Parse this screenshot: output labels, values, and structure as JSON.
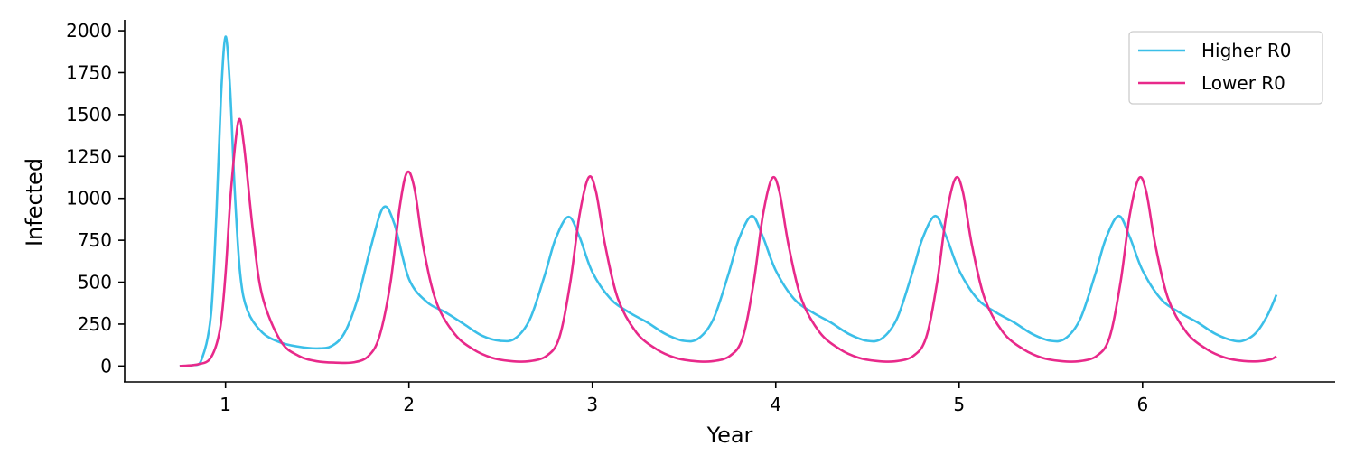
{
  "chart_data": {
    "type": "line",
    "title": "",
    "xlabel": "Year",
    "ylabel": "Infected",
    "xlim": [
      0.45,
      7.05
    ],
    "ylim": [
      -95,
      2065
    ],
    "xticks": [
      1,
      2,
      3,
      4,
      5,
      6
    ],
    "yticks": [
      0,
      250,
      500,
      750,
      1000,
      1250,
      1500,
      1750,
      2000
    ],
    "grid": false,
    "legend_position": "top-right",
    "series": [
      {
        "name": "Higher R0",
        "color": "#3bbfe8",
        "points": [
          [
            0.75,
            0
          ],
          [
            0.82,
            5
          ],
          [
            0.87,
            40
          ],
          [
            0.92,
            300
          ],
          [
            0.95,
            900
          ],
          [
            0.975,
            1600
          ],
          [
            1.0,
            1965
          ],
          [
            1.025,
            1650
          ],
          [
            1.05,
            1050
          ],
          [
            1.08,
            550
          ],
          [
            1.12,
            330
          ],
          [
            1.2,
            200
          ],
          [
            1.3,
            140
          ],
          [
            1.4,
            115
          ],
          [
            1.5,
            105
          ],
          [
            1.58,
            120
          ],
          [
            1.65,
            200
          ],
          [
            1.72,
            400
          ],
          [
            1.79,
            700
          ],
          [
            1.86,
            945
          ],
          [
            1.92,
            850
          ],
          [
            2.0,
            520
          ],
          [
            2.1,
            380
          ],
          [
            2.2,
            320
          ],
          [
            2.3,
            250
          ],
          [
            2.4,
            180
          ],
          [
            2.5,
            150
          ],
          [
            2.58,
            165
          ],
          [
            2.66,
            280
          ],
          [
            2.74,
            540
          ],
          [
            2.8,
            760
          ],
          [
            2.87,
            890
          ],
          [
            2.93,
            770
          ],
          [
            3.0,
            560
          ],
          [
            3.1,
            400
          ],
          [
            3.2,
            320
          ],
          [
            3.3,
            260
          ],
          [
            3.4,
            190
          ],
          [
            3.5,
            150
          ],
          [
            3.58,
            165
          ],
          [
            3.66,
            280
          ],
          [
            3.74,
            540
          ],
          [
            3.8,
            760
          ],
          [
            3.87,
            895
          ],
          [
            3.93,
            770
          ],
          [
            4.0,
            570
          ],
          [
            4.1,
            400
          ],
          [
            4.2,
            320
          ],
          [
            4.3,
            260
          ],
          [
            4.4,
            190
          ],
          [
            4.5,
            150
          ],
          [
            4.58,
            165
          ],
          [
            4.66,
            280
          ],
          [
            4.74,
            540
          ],
          [
            4.8,
            760
          ],
          [
            4.87,
            895
          ],
          [
            4.93,
            770
          ],
          [
            5.0,
            570
          ],
          [
            5.1,
            400
          ],
          [
            5.2,
            320
          ],
          [
            5.3,
            260
          ],
          [
            5.4,
            190
          ],
          [
            5.5,
            150
          ],
          [
            5.58,
            165
          ],
          [
            5.66,
            280
          ],
          [
            5.74,
            540
          ],
          [
            5.8,
            760
          ],
          [
            5.87,
            895
          ],
          [
            5.93,
            770
          ],
          [
            6.0,
            570
          ],
          [
            6.1,
            400
          ],
          [
            6.2,
            320
          ],
          [
            6.3,
            260
          ],
          [
            6.4,
            190
          ],
          [
            6.5,
            150
          ],
          [
            6.56,
            155
          ],
          [
            6.62,
            200
          ],
          [
            6.68,
            300
          ],
          [
            6.73,
            425
          ]
        ]
      },
      {
        "name": "Lower R0",
        "color": "#e8298a",
        "points": [
          [
            0.75,
            0
          ],
          [
            0.85,
            10
          ],
          [
            0.92,
            50
          ],
          [
            0.97,
            220
          ],
          [
            1.0,
            550
          ],
          [
            1.03,
            1050
          ],
          [
            1.07,
            1460
          ],
          [
            1.1,
            1320
          ],
          [
            1.15,
            800
          ],
          [
            1.2,
            420
          ],
          [
            1.3,
            150
          ],
          [
            1.4,
            60
          ],
          [
            1.5,
            28
          ],
          [
            1.6,
            20
          ],
          [
            1.7,
            22
          ],
          [
            1.78,
            60
          ],
          [
            1.84,
            180
          ],
          [
            1.9,
            500
          ],
          [
            1.95,
            950
          ],
          [
            1.99,
            1155
          ],
          [
            2.03,
            1060
          ],
          [
            2.08,
            700
          ],
          [
            2.15,
            380
          ],
          [
            2.25,
            190
          ],
          [
            2.35,
            100
          ],
          [
            2.45,
            50
          ],
          [
            2.55,
            30
          ],
          [
            2.65,
            28
          ],
          [
            2.75,
            60
          ],
          [
            2.82,
            170
          ],
          [
            2.88,
            500
          ],
          [
            2.93,
            900
          ],
          [
            2.98,
            1125
          ],
          [
            3.02,
            1040
          ],
          [
            3.07,
            720
          ],
          [
            3.14,
            400
          ],
          [
            3.24,
            200
          ],
          [
            3.35,
            100
          ],
          [
            3.45,
            50
          ],
          [
            3.55,
            30
          ],
          [
            3.65,
            28
          ],
          [
            3.75,
            60
          ],
          [
            3.82,
            170
          ],
          [
            3.88,
            500
          ],
          [
            3.93,
            900
          ],
          [
            3.98,
            1120
          ],
          [
            4.02,
            1040
          ],
          [
            4.07,
            720
          ],
          [
            4.14,
            400
          ],
          [
            4.24,
            200
          ],
          [
            4.35,
            100
          ],
          [
            4.45,
            50
          ],
          [
            4.55,
            30
          ],
          [
            4.65,
            28
          ],
          [
            4.75,
            60
          ],
          [
            4.82,
            170
          ],
          [
            4.88,
            500
          ],
          [
            4.93,
            900
          ],
          [
            4.98,
            1120
          ],
          [
            5.02,
            1040
          ],
          [
            5.07,
            720
          ],
          [
            5.14,
            400
          ],
          [
            5.24,
            200
          ],
          [
            5.35,
            100
          ],
          [
            5.45,
            50
          ],
          [
            5.55,
            30
          ],
          [
            5.65,
            28
          ],
          [
            5.75,
            60
          ],
          [
            5.82,
            170
          ],
          [
            5.88,
            500
          ],
          [
            5.93,
            900
          ],
          [
            5.98,
            1120
          ],
          [
            6.02,
            1040
          ],
          [
            6.07,
            720
          ],
          [
            6.14,
            400
          ],
          [
            6.24,
            200
          ],
          [
            6.35,
            100
          ],
          [
            6.45,
            50
          ],
          [
            6.55,
            30
          ],
          [
            6.63,
            28
          ],
          [
            6.7,
            40
          ],
          [
            6.73,
            58
          ]
        ]
      }
    ]
  }
}
